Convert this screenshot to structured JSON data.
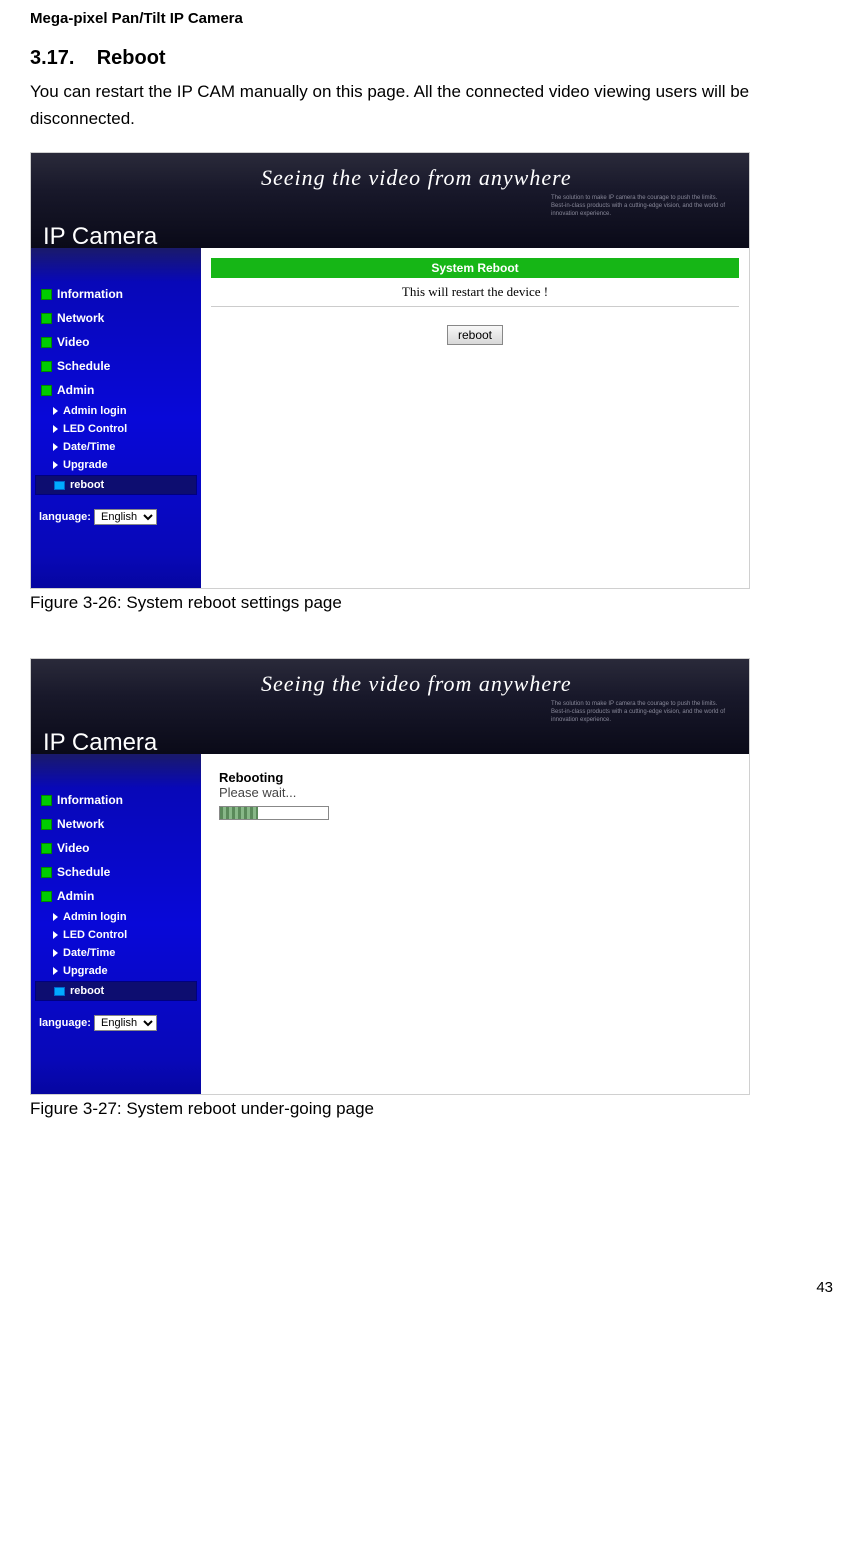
{
  "doc": {
    "header": "Mega-pixel Pan/Tilt IP Camera",
    "section_number": "3.17.",
    "section_title": "Reboot",
    "body": "You can restart the IP CAM manually on this page. All the connected video viewing users will be disconnected.",
    "caption1": "Figure 3-26: System reboot settings page",
    "caption2": "Figure 3-27: System reboot under-going page",
    "page_number": "43"
  },
  "ui": {
    "logo": "IP Camera",
    "tagline": "Seeing the video from anywhere",
    "subtext": "The solution to make IP camera the courage to push the limits. Best-in-class products with a cutting-edge vision, and the world of innovation experience.",
    "nav": {
      "information": "Information",
      "network": "Network",
      "video": "Video",
      "schedule": "Schedule",
      "admin": "Admin"
    },
    "admin_sub": {
      "login": "Admin login",
      "led": "LED Control",
      "datetime": "Date/Time",
      "upgrade": "Upgrade",
      "reboot": "reboot"
    },
    "language_label": "language:",
    "language_value": "English",
    "panel": {
      "header": "System Reboot",
      "restart_text": "This will restart the device !",
      "button": "reboot",
      "rebooting": "Rebooting",
      "please_wait": "Please wait..."
    },
    "colors": {
      "sidebar_bg": "#0808d8",
      "green_header": "#16b616",
      "banner_bg": "#18182a",
      "nav_icon": "#00cc00"
    }
  }
}
